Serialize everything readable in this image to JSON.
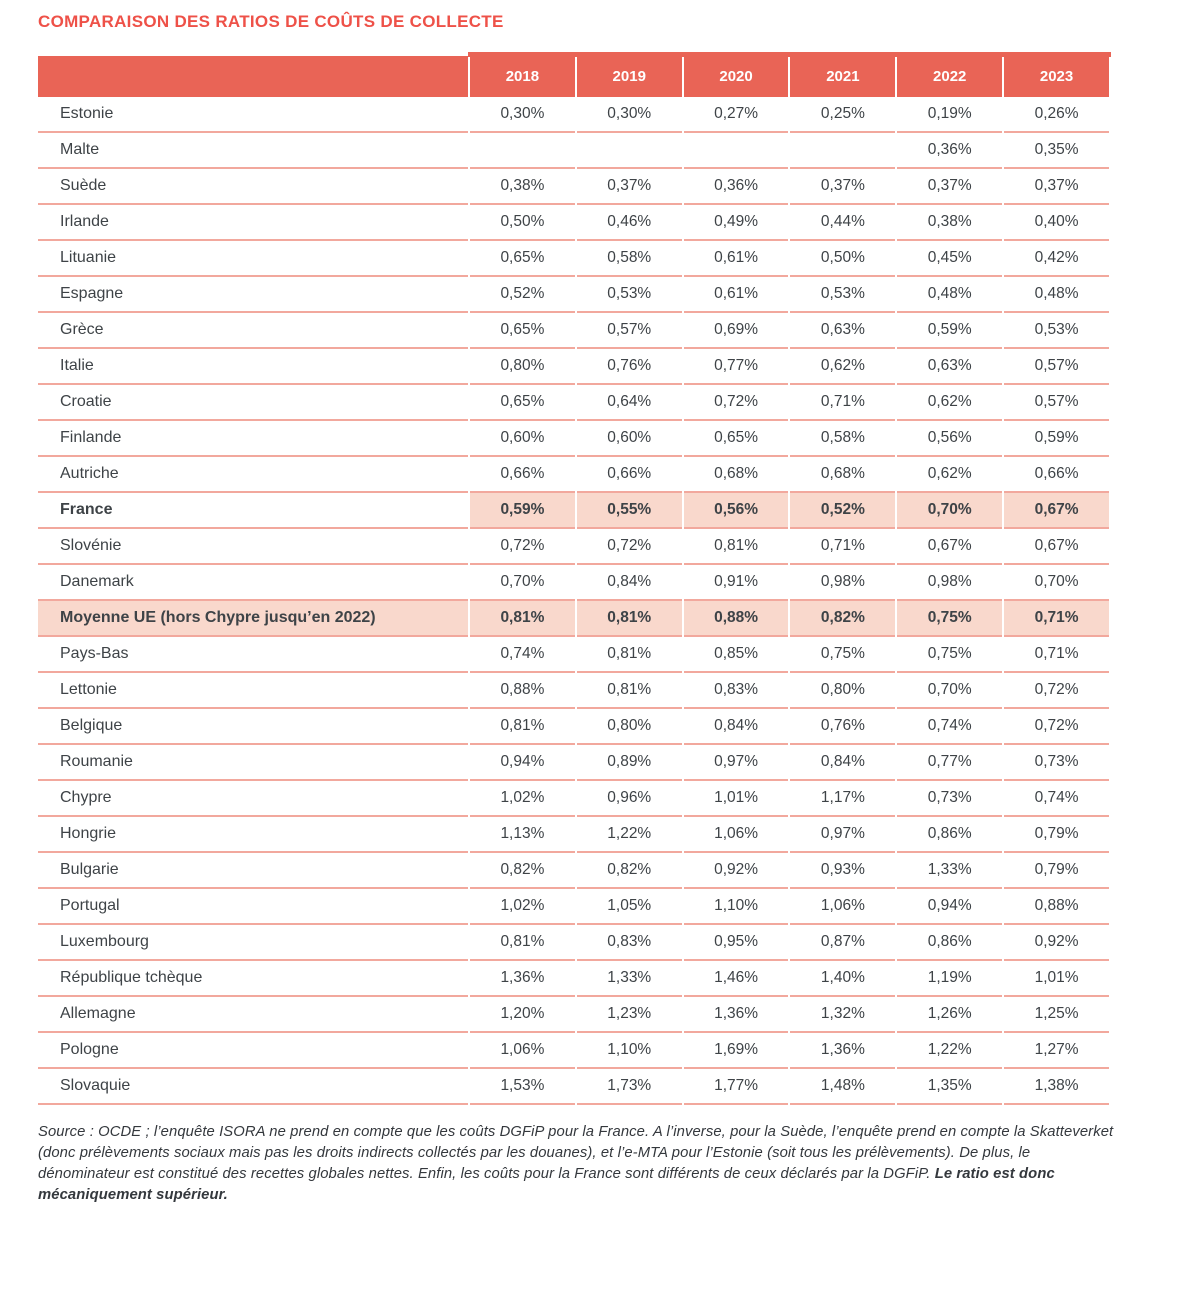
{
  "title": "COMPARAISON DES RATIOS DE COÛTS DE COLLECTE",
  "colors": {
    "title": "#ee5148",
    "header-bg": "#e96456",
    "header-text": "#ffffff",
    "row-line": "#f2a89d",
    "highlight-bg": "#f9d8cc",
    "text": "#3e4347"
  },
  "table": {
    "columns": [
      "2018",
      "2019",
      "2020",
      "2021",
      "2022",
      "2023"
    ],
    "rows": [
      {
        "label": "Estonie",
        "values": [
          "0,30%",
          "0,30%",
          "0,27%",
          "0,25%",
          "0,19%",
          "0,26%"
        ]
      },
      {
        "label": "Malte",
        "values": [
          "",
          "",
          "",
          "",
          "0,36%",
          "0,35%"
        ]
      },
      {
        "label": "Suède",
        "values": [
          "0,38%",
          "0,37%",
          "0,36%",
          "0,37%",
          "0,37%",
          "0,37%"
        ]
      },
      {
        "label": "Irlande",
        "values": [
          "0,50%",
          "0,46%",
          "0,49%",
          "0,44%",
          "0,38%",
          "0,40%"
        ]
      },
      {
        "label": "Lituanie",
        "values": [
          "0,65%",
          "0,58%",
          "0,61%",
          "0,50%",
          "0,45%",
          "0,42%"
        ]
      },
      {
        "label": "Espagne",
        "values": [
          "0,52%",
          "0,53%",
          "0,61%",
          "0,53%",
          "0,48%",
          "0,48%"
        ]
      },
      {
        "label": "Grèce",
        "values": [
          "0,65%",
          "0,57%",
          "0,69%",
          "0,63%",
          "0,59%",
          "0,53%"
        ]
      },
      {
        "label": "Italie",
        "values": [
          "0,80%",
          "0,76%",
          "0,77%",
          "0,62%",
          "0,63%",
          "0,57%"
        ]
      },
      {
        "label": "Croatie",
        "values": [
          "0,65%",
          "0,64%",
          "0,72%",
          "0,71%",
          "0,62%",
          "0,57%"
        ]
      },
      {
        "label": "Finlande",
        "values": [
          "0,60%",
          "0,60%",
          "0,65%",
          "0,58%",
          "0,56%",
          "0,59%"
        ]
      },
      {
        "label": "Autriche",
        "values": [
          "0,66%",
          "0,66%",
          "0,68%",
          "0,68%",
          "0,62%",
          "0,66%"
        ]
      },
      {
        "label": "France",
        "values": [
          "0,59%",
          "0,55%",
          "0,56%",
          "0,52%",
          "0,70%",
          "0,67%"
        ],
        "bold": true,
        "highlight": "cells"
      },
      {
        "label": "Slovénie",
        "values": [
          "0,72%",
          "0,72%",
          "0,81%",
          "0,71%",
          "0,67%",
          "0,67%"
        ]
      },
      {
        "label": "Danemark",
        "values": [
          "0,70%",
          "0,84%",
          "0,91%",
          "0,98%",
          "0,98%",
          "0,70%"
        ]
      },
      {
        "label": "Moyenne UE (hors Chypre jusqu’en 2022)",
        "values": [
          "0,81%",
          "0,81%",
          "0,88%",
          "0,82%",
          "0,75%",
          "0,71%"
        ],
        "bold": true,
        "highlight": "row"
      },
      {
        "label": "Pays-Bas",
        "values": [
          "0,74%",
          "0,81%",
          "0,85%",
          "0,75%",
          "0,75%",
          "0,71%"
        ]
      },
      {
        "label": "Lettonie",
        "values": [
          "0,88%",
          "0,81%",
          "0,83%",
          "0,80%",
          "0,70%",
          "0,72%"
        ]
      },
      {
        "label": "Belgique",
        "values": [
          "0,81%",
          "0,80%",
          "0,84%",
          "0,76%",
          "0,74%",
          "0,72%"
        ]
      },
      {
        "label": "Roumanie",
        "values": [
          "0,94%",
          "0,89%",
          "0,97%",
          "0,84%",
          "0,77%",
          "0,73%"
        ]
      },
      {
        "label": "Chypre",
        "values": [
          "1,02%",
          "0,96%",
          "1,01%",
          "1,17%",
          "0,73%",
          "0,74%"
        ]
      },
      {
        "label": "Hongrie",
        "values": [
          "1,13%",
          "1,22%",
          "1,06%",
          "0,97%",
          "0,86%",
          "0,79%"
        ]
      },
      {
        "label": "Bulgarie",
        "values": [
          "0,82%",
          "0,82%",
          "0,92%",
          "0,93%",
          "1,33%",
          "0,79%"
        ]
      },
      {
        "label": "Portugal",
        "values": [
          "1,02%",
          "1,05%",
          "1,10%",
          "1,06%",
          "0,94%",
          "0,88%"
        ]
      },
      {
        "label": "Luxembourg",
        "values": [
          "0,81%",
          "0,83%",
          "0,95%",
          "0,87%",
          "0,86%",
          "0,92%"
        ]
      },
      {
        "label": "République tchèque",
        "values": [
          "1,36%",
          "1,33%",
          "1,46%",
          "1,40%",
          "1,19%",
          "1,01%"
        ]
      },
      {
        "label": "Allemagne",
        "values": [
          "1,20%",
          "1,23%",
          "1,36%",
          "1,32%",
          "1,26%",
          "1,25%"
        ]
      },
      {
        "label": "Pologne",
        "values": [
          "1,06%",
          "1,10%",
          "1,69%",
          "1,36%",
          "1,22%",
          "1,27%"
        ]
      },
      {
        "label": "Slovaquie",
        "values": [
          "1,53%",
          "1,73%",
          "1,77%",
          "1,48%",
          "1,35%",
          "1,38%"
        ]
      }
    ]
  },
  "footnote": {
    "text": "Source : OCDE ; l’enquête ISORA ne prend en compte que les coûts DGFiP pour la France. A l’inverse, pour la Suède, l’enquête prend en compte la Skatteverket (donc prélèvements sociaux mais pas les droits indirects collectés par les douanes), et l’e‑MTA pour l’Estonie (soit tous les prélèvements). De plus, le dénominateur est constitué des recettes globales nettes. Enfin, les coûts pour la France sont différents de ceux déclarés par la DGFiP. ",
    "bold_text": "Le ratio est donc mécaniquement supérieur."
  }
}
